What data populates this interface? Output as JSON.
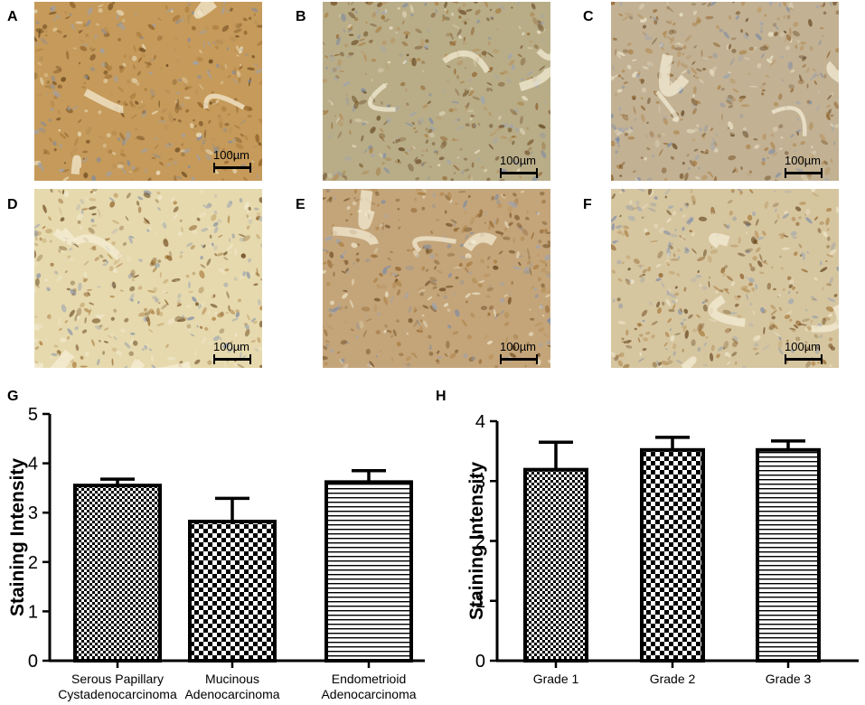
{
  "panels": [
    {
      "letter": "A",
      "scale_label": "100µm",
      "tint": "#c59a5a"
    },
    {
      "letter": "B",
      "scale_label": "100µm",
      "tint": "#b9ad88"
    },
    {
      "letter": "C",
      "scale_label": "100µm",
      "tint": "#c2b193"
    },
    {
      "letter": "D",
      "scale_label": "100µm",
      "tint": "#e6d9ad"
    },
    {
      "letter": "E",
      "scale_label": "100µm",
      "tint": "#c4a57a"
    },
    {
      "letter": "F",
      "scale_label": "100µm",
      "tint": "#d6c6a0"
    }
  ],
  "chart_data": [
    {
      "letter": "G",
      "type": "bar",
      "categories": [
        "Serous Papillary Cystadenocarcinoma",
        "Mucinous Adenocarcinoma",
        "Endometrioid Adenocarcinoma"
      ],
      "category_lines": [
        [
          "Serous Papillary",
          "Cystadenocarcinoma"
        ],
        [
          "Mucinous",
          "Adenocarcinoma"
        ],
        [
          "Endometrioid",
          "Adenocarcinoma"
        ]
      ],
      "values": [
        3.55,
        2.82,
        3.62
      ],
      "errors": [
        0.13,
        0.47,
        0.23
      ],
      "patterns": [
        "checker",
        "checker-bold",
        "hstripe"
      ],
      "ylabel": "Staining Intensity",
      "ylim": [
        0,
        5
      ],
      "yticks": [
        0,
        1,
        2,
        3,
        4,
        5
      ],
      "grid": false,
      "colors": {
        "fill": "#000000",
        "background": "#ffffff"
      }
    },
    {
      "letter": "H",
      "type": "bar",
      "categories": [
        "Grade 1",
        "Grade 2",
        "Grade 3"
      ],
      "category_lines": [
        [
          "Grade 1"
        ],
        [
          "Grade 2"
        ],
        [
          "Grade 3"
        ]
      ],
      "values": [
        3.19,
        3.52,
        3.52
      ],
      "errors": [
        0.46,
        0.21,
        0.15
      ],
      "patterns": [
        "checker",
        "checker-bold",
        "hstripe"
      ],
      "ylabel": "Staining Intensity",
      "ylim": [
        0,
        4
      ],
      "yticks": [
        0,
        1,
        2,
        3,
        4
      ],
      "grid": false,
      "colors": {
        "fill": "#000000",
        "background": "#ffffff"
      }
    }
  ]
}
